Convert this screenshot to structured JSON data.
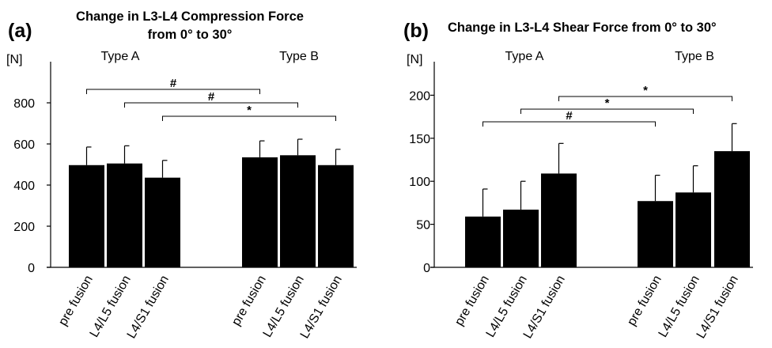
{
  "chart_data": [
    {
      "type": "bar",
      "panel_label": "(a)",
      "title": [
        "Change in L3-L4 Compression Force",
        "from 0° to 30°"
      ],
      "unit_label": "[N]",
      "ylim": [
        0,
        1000
      ],
      "yticks": [
        0,
        200,
        400,
        600,
        800
      ],
      "groups": [
        "Type A",
        "Type B"
      ],
      "categories": [
        "pre fusion",
        "L4/L5 fusion",
        "L4/S1 fusion",
        "pre fusion",
        "L4/L5 fusion",
        "L4/S1 fusion"
      ],
      "values": [
        497,
        505,
        436,
        535,
        545,
        497
      ],
      "error": [
        88,
        86,
        84,
        80,
        78,
        77
      ],
      "bar_color": "#000000",
      "significance": [
        {
          "from": 0,
          "to": 3,
          "label": "#"
        },
        {
          "from": 1,
          "to": 4,
          "label": "#"
        },
        {
          "from": 2,
          "to": 5,
          "label": "*"
        }
      ]
    },
    {
      "type": "bar",
      "panel_label": "(b)",
      "title": [
        "Change in L3-L4 Shear Force from 0° to 30°"
      ],
      "unit_label": "[N]",
      "ylim": [
        0,
        250
      ],
      "yticks": [
        0,
        50,
        100,
        150,
        200
      ],
      "groups": [
        "Type A",
        "Type B"
      ],
      "categories": [
        "pre fusion",
        "L4/L5 fusion",
        "L4/S1 fusion",
        "pre fusion",
        "L4/L5 fusion",
        "L4/S1 fusion"
      ],
      "values": [
        59,
        67,
        109,
        77,
        87,
        135
      ],
      "error": [
        32,
        33,
        35,
        30,
        31,
        32
      ],
      "bar_color": "#000000",
      "significance": [
        {
          "from": 2,
          "to": 5,
          "label": "*"
        },
        {
          "from": 1,
          "to": 4,
          "label": "*"
        },
        {
          "from": 0,
          "to": 3,
          "label": "#"
        }
      ]
    }
  ]
}
